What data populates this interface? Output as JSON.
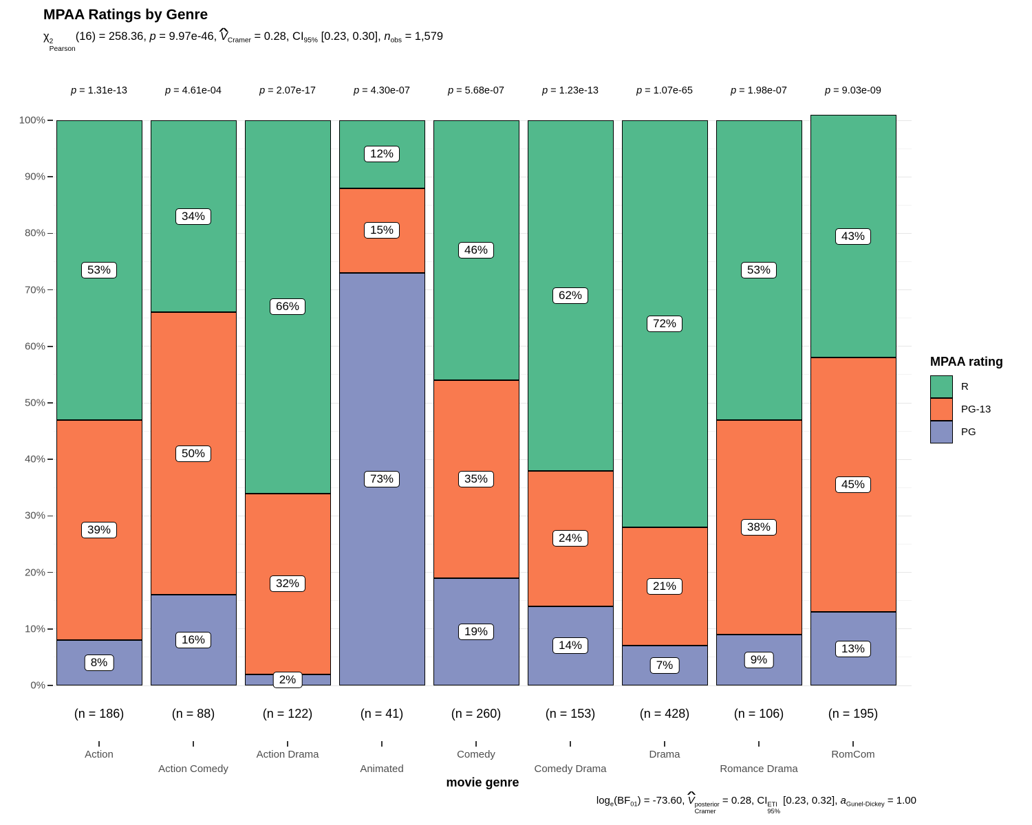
{
  "subtitle_parts": [
    {
      "t": "χ",
      "stack": {
        "sup": "2",
        "sub": "Pearson"
      }
    },
    {
      "t": "(16) = 258.36, "
    },
    {
      "t": "p",
      "i": true
    },
    {
      "t": " = 9.97e-46, "
    },
    {
      "t": "V",
      "i": true,
      "hat": true,
      "sub": "Cramer"
    },
    {
      "t": " = 0.28, "
    },
    {
      "t": "CI",
      "sub": "95%"
    },
    {
      "t": " [0.23, 0.30], "
    },
    {
      "t": "n",
      "i": true,
      "sub": "obs"
    },
    {
      "t": " = 1,579"
    }
  ],
  "caption_parts": [
    {
      "t": "log",
      "sub": "e"
    },
    {
      "t": "(BF",
      "sub": "01"
    },
    {
      "t": ") = -73.60, "
    },
    {
      "t": "V",
      "i": true,
      "hat": true,
      "stack": {
        "sup": "posterior",
        "sub": "Cramer"
      }
    },
    {
      "t": " = 0.28, "
    },
    {
      "t": "CI",
      "stack": {
        "sup": "ETI",
        "sub": "95%"
      }
    },
    {
      "t": " [0.23, 0.32], "
    },
    {
      "t": "a",
      "i": true,
      "sub": "Gunel-Dickey"
    },
    {
      "t": " = 1.00"
    }
  ],
  "chart_data": {
    "type": "bar",
    "variant": "stacked-percent",
    "title": "MPAA Ratings by Genre",
    "xlabel": "movie genre",
    "ylabel": "",
    "ylim": [
      0,
      100
    ],
    "ytick_major_step": 10,
    "ytick_minor_step": 5,
    "ytick_suffix": "%",
    "grid": "horizontal",
    "legend_title": "MPAA rating",
    "legend_position": "right",
    "categories": [
      "Action",
      "Action Comedy",
      "Action Drama",
      "Animated",
      "Comedy",
      "Comedy Drama",
      "Drama",
      "Romance Drama",
      "RomCom"
    ],
    "n_labels": [
      "(n = 186)",
      "(n = 88)",
      "(n = 122)",
      "(n = 41)",
      "(n = 260)",
      "(n = 153)",
      "(n = 428)",
      "(n = 106)",
      "(n = 195)"
    ],
    "p_prefix": "p",
    "p_values": [
      "1.31e-13",
      "4.61e-04",
      "2.07e-17",
      "4.30e-07",
      "5.68e-07",
      "1.23e-13",
      "1.07e-65",
      "1.98e-07",
      "9.03e-09"
    ],
    "series": [
      {
        "name": "R",
        "color": "#52B98C",
        "values": [
          53,
          34,
          66,
          12,
          46,
          62,
          72,
          53,
          43
        ]
      },
      {
        "name": "PG-13",
        "color": "#F97A4F",
        "values": [
          39,
          50,
          32,
          15,
          35,
          24,
          21,
          38,
          45
        ]
      },
      {
        "name": "PG",
        "color": "#8691C2",
        "values": [
          8,
          16,
          2,
          73,
          19,
          14,
          7,
          9,
          13
        ]
      }
    ],
    "bar_label_suffix": "%",
    "colors": {
      "bar_border": "#000000",
      "axis_text": "#4d4d4d",
      "tick": "#333333"
    }
  }
}
